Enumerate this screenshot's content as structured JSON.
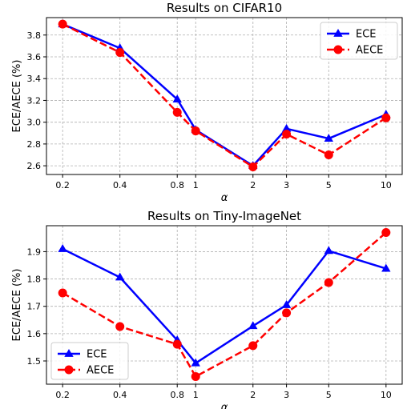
{
  "chart_data": [
    {
      "type": "line",
      "title": "Results on CIFAR10",
      "xlabel": "α",
      "ylabel": "ECE/AECE (%)",
      "x_scale": "log",
      "x": [
        0.2,
        0.4,
        0.8,
        1,
        2,
        3,
        5,
        10
      ],
      "x_tick_labels": [
        "0.2",
        "0.4",
        "0.8",
        "1",
        "2",
        "3",
        "5",
        "10"
      ],
      "ylim": [
        2.52,
        3.96
      ],
      "yticks": [
        2.6,
        2.8,
        3.0,
        3.2,
        3.4,
        3.6,
        3.8
      ],
      "y_tick_labels": [
        "2.6",
        "2.8",
        "3.0",
        "3.2",
        "3.4",
        "3.6",
        "3.8"
      ],
      "grid": true,
      "legend_position": "top-right",
      "series": [
        {
          "name": "ECE",
          "color": "#0000ff",
          "linestyle": "solid",
          "marker": "triangle",
          "values": [
            3.9,
            3.68,
            3.21,
            2.93,
            2.6,
            2.94,
            2.85,
            3.07
          ]
        },
        {
          "name": "AECE",
          "color": "#ff0000",
          "linestyle": "dashed",
          "marker": "circle",
          "values": [
            3.9,
            3.64,
            3.09,
            2.92,
            2.59,
            2.89,
            2.7,
            3.04
          ]
        }
      ]
    },
    {
      "type": "line",
      "title": "Results on Tiny-ImageNet",
      "xlabel": "α",
      "ylabel": "ECE/AECE (%)",
      "x_scale": "log",
      "x": [
        0.2,
        0.4,
        0.8,
        1,
        2,
        3,
        5,
        10
      ],
      "x_tick_labels": [
        "0.2",
        "0.4",
        "0.8",
        "1",
        "2",
        "3",
        "5",
        "10"
      ],
      "ylim": [
        1.415,
        1.995
      ],
      "yticks": [
        1.5,
        1.6,
        1.7,
        1.8,
        1.9
      ],
      "y_tick_labels": [
        "1.5",
        "1.6",
        "1.7",
        "1.8",
        "1.9"
      ],
      "grid": true,
      "legend_position": "bottom-left",
      "series": [
        {
          "name": "ECE",
          "color": "#0000ff",
          "linestyle": "solid",
          "marker": "triangle",
          "values": [
            1.91,
            1.806,
            1.576,
            1.492,
            1.628,
            1.705,
            1.903,
            1.838
          ]
        },
        {
          "name": "AECE",
          "color": "#ff0000",
          "linestyle": "dashed",
          "marker": "circle",
          "values": [
            1.749,
            1.626,
            1.561,
            1.443,
            1.556,
            1.676,
            1.787,
            1.97
          ]
        }
      ]
    }
  ]
}
